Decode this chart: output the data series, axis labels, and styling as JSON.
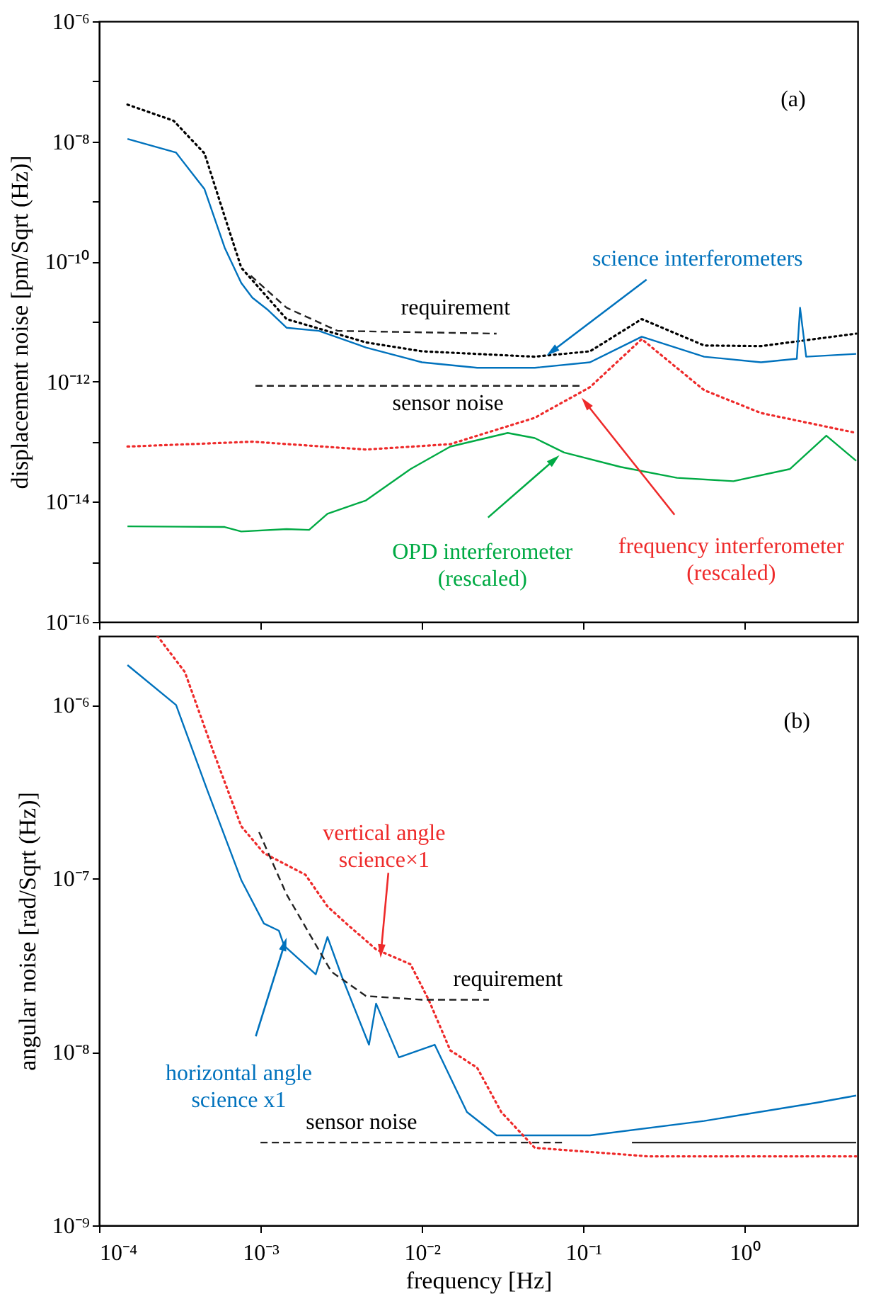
{
  "chart_data": [
    {
      "type": "line",
      "log": "xy",
      "ylabel": "displacement noise [pm/Sqrt (Hz)]",
      "tick_labels": "y",
      "xlim": [
        0.0001,
        5
      ],
      "ylim": [
        1e-16,
        1e-06
      ],
      "xticks": [
        {
          "value": 0.0001,
          "label": null
        },
        {
          "value": 0.001,
          "label": null
        },
        {
          "value": 0.01,
          "label": null
        },
        {
          "value": 0.1,
          "label": null
        },
        {
          "value": 1,
          "label": null
        }
      ],
      "yticks": [
        {
          "value": 1e-16,
          "label": "10⁻¹⁶"
        },
        {
          "value": 1e-15,
          "label": null
        },
        {
          "value": 1e-14,
          "label": "10⁻¹⁴"
        },
        {
          "value": 1e-13,
          "label": null
        },
        {
          "value": 1e-12,
          "label": "10⁻¹²"
        },
        {
          "value": 1e-11,
          "label": null
        },
        {
          "value": 1e-10,
          "label": "10⁻¹⁰"
        },
        {
          "value": 1e-09,
          "label": null
        },
        {
          "value": 1e-08,
          "label": "10⁻⁸"
        },
        {
          "value": 1e-07,
          "label": null
        },
        {
          "value": 1e-06,
          "label": "10⁻⁶"
        }
      ],
      "series": [
        {
          "color": "#000000",
          "line_style": "dotted",
          "x": [
            0.00015,
            0.00029,
            0.00045,
            0.0006,
            0.00076,
            0.00145,
            0.0045,
            0.01,
            0.05,
            0.11,
            0.23,
            0.56,
            1.26,
            4.9
          ],
          "values": [
            4.1e-08,
            2.2e-08,
            6.3e-09,
            5.6e-10,
            7.9e-11,
            1.1e-11,
            4.5e-12,
            3.2e-12,
            2.6e-12,
            3.2e-12,
            1.1e-11,
            4e-12,
            3.9e-12,
            6.3e-12
          ]
        },
        {
          "color": "#0072bd",
          "line_style": "solid",
          "x": [
            0.00015,
            0.0003,
            0.00045,
            0.0006,
            0.00076,
            0.00089,
            0.0011,
            0.00145,
            0.0023,
            0.0045,
            0.01,
            0.022,
            0.05,
            0.11,
            0.23,
            0.56,
            1.26,
            2.1,
            2.2,
            2.4,
            4.9
          ],
          "values": [
            1.1e-08,
            6.5e-09,
            1.6e-09,
            1.7e-10,
            4.4e-11,
            2.5e-11,
            1.6e-11,
            7.9e-12,
            7e-12,
            3.7e-12,
            2.1e-12,
            1.7e-12,
            1.7e-12,
            2.1e-12,
            5.6e-12,
            2.6e-12,
            2.1e-12,
            2.4e-12,
            1.7e-11,
            2.6e-12,
            2.9e-12
          ]
        },
        {
          "color": "#222222",
          "line_style": "dashed",
          "x": [
            0.00087,
            0.00145,
            0.003,
            0.029
          ],
          "values": [
            5.8e-11,
            1.7e-11,
            7e-12,
            6.3e-12
          ]
        },
        {
          "color": "#222222",
          "line_style": "dashed",
          "x": [
            0.00093,
            0.095
          ],
          "values": [
            8.5e-13,
            8.5e-13
          ]
        },
        {
          "color": "#ee2a2a",
          "line_style": "dotted",
          "x": [
            0.00015,
            0.00089,
            0.0045,
            0.015,
            0.05,
            0.11,
            0.23,
            0.56,
            1.26,
            4.9
          ],
          "values": [
            8.3e-14,
            1e-13,
            7.4e-14,
            9.1e-14,
            2.5e-13,
            8.1e-13,
            5.1e-12,
            7.2e-13,
            3e-13,
            1.4e-13
          ]
        },
        {
          "color": "#00aa44",
          "line_style": "solid",
          "x": [
            0.00015,
            0.0006,
            0.00076,
            0.00145,
            0.002,
            0.0026,
            0.0045,
            0.0085,
            0.015,
            0.034,
            0.05,
            0.076,
            0.17,
            0.38,
            0.85,
            1.9,
            3.2,
            4.9
          ],
          "values": [
            3.9e-15,
            3.8e-15,
            3.2e-15,
            3.5e-15,
            3.4e-15,
            6.3e-15,
            1.05e-14,
            3.5e-14,
            8.3e-14,
            1.4e-13,
            1.15e-13,
            6.6e-14,
            3.8e-14,
            2.5e-14,
            2.2e-14,
            3.5e-14,
            1.26e-13,
            4.8e-14
          ]
        }
      ],
      "annotations": [
        "(a)",
        {
          "text": "science interferometers",
          "x": 0.065,
          "y": 3.3e-12
        },
        "requirement",
        "sensor noise",
        {
          "text": "OPD interferometer\n(rescaled)",
          "x": 0.065,
          "y": 4.8e-14
        },
        {
          "text": "frequency interferometer\n(rescaled)",
          "x": 0.105,
          "y": 4.2e-13
        }
      ]
    },
    {
      "type": "line",
      "log": "xy",
      "xlabel": "frequency [Hz]",
      "ylabel": "angular noise [rad/Sqrt (Hz)]",
      "xlim": [
        0.0001,
        5
      ],
      "ylim": [
        1e-09,
        2.5e-06
      ],
      "xticks": [
        {
          "value": 0.0001,
          "label": "10⁻⁴"
        },
        {
          "value": 0.001,
          "label": "10⁻³"
        },
        {
          "value": 0.01,
          "label": "10⁻²"
        },
        {
          "value": 0.1,
          "label": "10⁻¹"
        },
        {
          "value": 1,
          "label": "10⁰"
        }
      ],
      "yticks": [
        {
          "value": 1e-09,
          "label": "10⁻⁹"
        },
        {
          "value": 1e-08,
          "label": "10⁻⁸"
        },
        {
          "value": 1e-07,
          "label": "10⁻⁷"
        },
        {
          "value": 1e-06,
          "label": "10⁻⁶"
        }
      ],
      "series": [
        {
          "color": "#0072bd",
          "line_style": "solid",
          "x": [
            0.00015,
            0.0003,
            0.00047,
            0.00076,
            0.00105,
            0.0013,
            0.0014,
            0.0022,
            0.0026,
            0.0032,
            0.0047,
            0.0052,
            0.0072,
            0.012,
            0.019,
            0.029,
            0.11,
            0.56,
            2.8,
            4.9
          ],
          "values": [
            1.7e-06,
            1e-06,
            3.2e-07,
            9.8e-08,
            5.5e-08,
            5e-08,
            4.1e-08,
            2.8e-08,
            4.6e-08,
            2.7e-08,
            1.1e-08,
            1.9e-08,
            9.3e-09,
            1.1e-08,
            4.5e-09,
            3.3e-09,
            3.3e-09,
            4e-09,
            5.1e-09,
            5.6e-09
          ]
        },
        {
          "color": "#ee2a2a",
          "line_style": "dotted",
          "x": [
            0.00023,
            0.00034,
            0.00051,
            0.00076,
            0.00105,
            0.0019,
            0.0026,
            0.0034,
            0.0052,
            0.0085,
            0.011,
            0.015,
            0.022,
            0.031,
            0.05,
            0.25,
            1.26,
            4.9
          ],
          "values": [
            2.5e-06,
            1.55e-06,
            5.4e-07,
            2e-07,
            1.4e-07,
            1.05e-07,
            6.9e-08,
            5.5e-08,
            3.9e-08,
            3.2e-08,
            2e-08,
            1.02e-08,
            8.1e-09,
            4.5e-09,
            2.8e-09,
            2.5e-09,
            2.5e-09,
            2.5e-09
          ]
        },
        {
          "color": "#222222",
          "line_style": "dashed",
          "x": [
            0.00098,
            0.00145,
            0.00275,
            0.0045,
            0.01,
            0.026
          ],
          "values": [
            1.85e-07,
            8.1e-08,
            2.9e-08,
            2.1e-08,
            2e-08,
            2e-08
          ]
        },
        {
          "color": "#222222",
          "line_style": "dashed",
          "x": [
            0.001,
            0.076
          ],
          "values": [
            3e-09,
            3e-09
          ]
        },
        {
          "color": "#222222",
          "line_style": "solid",
          "x": [
            0.2,
            4.9
          ],
          "values": [
            3e-09,
            3e-09
          ]
        }
      ],
      "annotations": [
        "(b)",
        {
          "text": "vertical angle\nscience×1",
          "x": 0.0056,
          "y": 3.9e-08
        },
        "requirement",
        {
          "text": "horizontal angle\nscience x1",
          "x": 0.0014,
          "y": 4.1e-08
        },
        "sensor noise"
      ]
    }
  ]
}
